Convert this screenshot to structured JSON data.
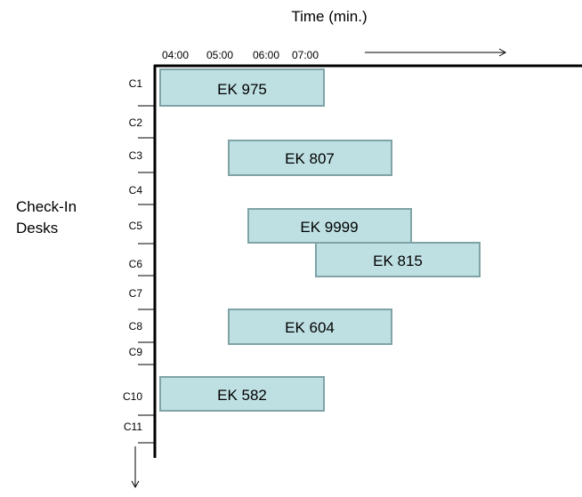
{
  "title": "Time (min.)",
  "y_axis_label": [
    "Check-In",
    "Desks"
  ],
  "time_ticks": [
    "04:00",
    "05:00",
    "06:00",
    "07:00"
  ],
  "desks": [
    "C1",
    "C2",
    "C3",
    "C4",
    "C5",
    "C6",
    "C7",
    "C8",
    "C9",
    "C10",
    "C11"
  ],
  "colors": {
    "bar_fill": "#bfe0e3",
    "bar_stroke": "#7fa3a6",
    "axis": "#000000"
  },
  "flights": [
    {
      "label": "EK 975",
      "desk": "C1"
    },
    {
      "label": "EK 807",
      "desk": "C3"
    },
    {
      "label": "EK 9999",
      "desk": "C5"
    },
    {
      "label": "EK 815",
      "desk": "C6"
    },
    {
      "label": "EK 604",
      "desk": "C8"
    },
    {
      "label": "EK 582",
      "desk": "C10"
    }
  ]
}
